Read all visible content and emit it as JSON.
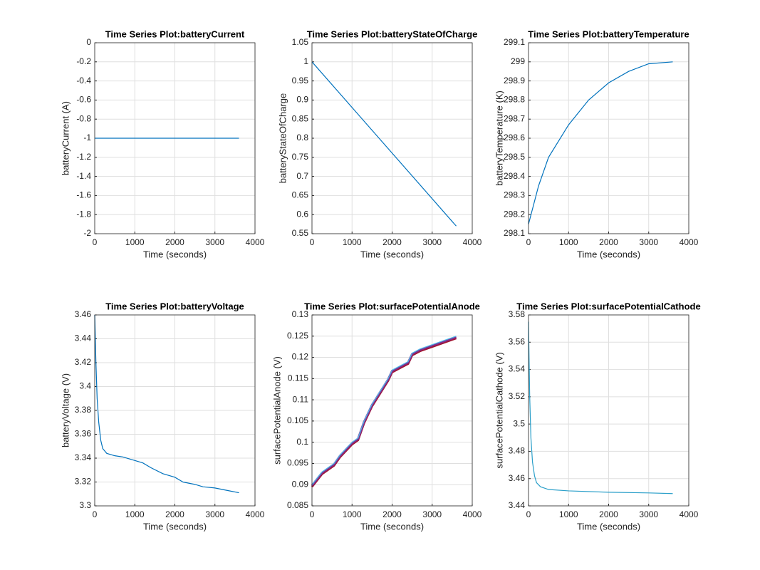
{
  "chart_data": [
    {
      "type": "line",
      "title": "Time Series Plot:batteryCurrent",
      "xlabel": "Time (seconds)",
      "ylabel": "batteryCurrent (A)",
      "x": [
        0,
        3600
      ],
      "series": [
        {
          "color": "#0072bd",
          "values": [
            -1,
            -1
          ]
        }
      ],
      "xlim": [
        0,
        4000
      ],
      "xticks": [
        0,
        1000,
        2000,
        3000,
        4000
      ],
      "ylim": [
        -2,
        0
      ],
      "yticks": [
        -2,
        -1.8,
        -1.6,
        -1.4,
        -1.2,
        -1,
        -0.8,
        -0.6,
        -0.4,
        -0.2,
        0
      ],
      "grid": true
    },
    {
      "type": "line",
      "title": "Time Series Plot:batteryStateOfCharge",
      "xlabel": "Time (seconds)",
      "ylabel": "batteryStateOfCharge",
      "x": [
        0,
        3600
      ],
      "series": [
        {
          "color": "#0072bd",
          "values": [
            1,
            0.57
          ]
        }
      ],
      "xlim": [
        0,
        4000
      ],
      "xticks": [
        0,
        1000,
        2000,
        3000,
        4000
      ],
      "ylim": [
        0.55,
        1.05
      ],
      "yticks": [
        0.55,
        0.6,
        0.65,
        0.7,
        0.75,
        0.8,
        0.85,
        0.9,
        0.95,
        1,
        1.05
      ],
      "grid": true
    },
    {
      "type": "line",
      "title": "Time Series Plot:batteryTemperature",
      "xlabel": "Time (seconds)",
      "ylabel": "batteryTemperature (K)",
      "x": [
        0,
        250,
        500,
        1000,
        1500,
        2000,
        2500,
        3000,
        3600
      ],
      "series": [
        {
          "color": "#0072bd",
          "values": [
            298.15,
            298.35,
            298.5,
            298.67,
            298.8,
            298.89,
            298.95,
            298.99,
            299.0
          ]
        }
      ],
      "xlim": [
        0,
        4000
      ],
      "xticks": [
        0,
        1000,
        2000,
        3000,
        4000
      ],
      "ylim": [
        298.1,
        299.1
      ],
      "yticks": [
        298.1,
        298.2,
        298.3,
        298.4,
        298.5,
        298.6,
        298.7,
        298.8,
        298.9,
        299,
        299.1
      ],
      "grid": true
    },
    {
      "type": "line",
      "title": "Time Series Plot:batteryVoltage",
      "xlabel": "Time (seconds)",
      "ylabel": "batteryVoltage (V)",
      "x": [
        0,
        30,
        60,
        100,
        150,
        200,
        300,
        500,
        700,
        1000,
        1200,
        1400,
        1700,
        2000,
        2200,
        2500,
        2700,
        3000,
        3300,
        3600
      ],
      "series": [
        {
          "color": "#0072bd",
          "values": [
            3.46,
            3.42,
            3.39,
            3.37,
            3.355,
            3.348,
            3.344,
            3.342,
            3.341,
            3.338,
            3.336,
            3.332,
            3.327,
            3.324,
            3.32,
            3.318,
            3.316,
            3.315,
            3.313,
            3.311
          ]
        }
      ],
      "xlim": [
        0,
        4000
      ],
      "xticks": [
        0,
        1000,
        2000,
        3000,
        4000
      ],
      "ylim": [
        3.3,
        3.46
      ],
      "yticks": [
        3.3,
        3.32,
        3.34,
        3.36,
        3.38,
        3.4,
        3.42,
        3.44,
        3.46
      ],
      "grid": true
    },
    {
      "type": "line",
      "title": "Time Series Plot:surfacePotentialAnode",
      "xlabel": "Time (seconds)",
      "ylabel": "surfacePotentialAnode (V)",
      "x": [
        0,
        250,
        550,
        700,
        900,
        1000,
        1150,
        1300,
        1500,
        1700,
        1900,
        2000,
        2200,
        2400,
        2500,
        2700,
        3000,
        3300,
        3600
      ],
      "series": [
        {
          "color": "#a2142f",
          "values": [
            0.0895,
            0.0925,
            0.0945,
            0.0965,
            0.0985,
            0.0995,
            0.1005,
            0.1045,
            0.1085,
            0.1115,
            0.1145,
            0.1165,
            0.1175,
            0.1185,
            0.1205,
            0.1215,
            0.1225,
            0.1235,
            0.1245
          ]
        },
        {
          "color": "#7e2f8e",
          "values": [
            0.0898,
            0.0928,
            0.0948,
            0.0968,
            0.0988,
            0.0998,
            0.1008,
            0.1048,
            0.1088,
            0.1118,
            0.1148,
            0.1168,
            0.1178,
            0.1188,
            0.1208,
            0.1218,
            0.1228,
            0.1238,
            0.1248
          ]
        },
        {
          "color": "#4dbeee",
          "values": [
            0.09,
            0.093,
            0.095,
            0.097,
            0.099,
            0.1,
            0.101,
            0.105,
            0.109,
            0.112,
            0.115,
            0.117,
            0.118,
            0.119,
            0.121,
            0.122,
            0.123,
            0.124,
            0.125
          ]
        }
      ],
      "xlim": [
        0,
        4000
      ],
      "xticks": [
        0,
        1000,
        2000,
        3000,
        4000
      ],
      "ylim": [
        0.085,
        0.13
      ],
      "yticks": [
        0.085,
        0.09,
        0.095,
        0.1,
        0.105,
        0.11,
        0.115,
        0.12,
        0.125,
        0.13
      ],
      "grid": true
    },
    {
      "type": "line",
      "title": "Time Series Plot:surfacePotentialCathode",
      "xlabel": "Time (seconds)",
      "ylabel": "surfacePotentialCathode (V)",
      "x": [
        0,
        30,
        60,
        100,
        150,
        200,
        300,
        500,
        1000,
        2000,
        3000,
        3600
      ],
      "series": [
        {
          "color": "#2a9fc9",
          "values": [
            3.575,
            3.52,
            3.49,
            3.472,
            3.462,
            3.457,
            3.454,
            3.452,
            3.451,
            3.45,
            3.4495,
            3.449
          ]
        }
      ],
      "xlim": [
        0,
        4000
      ],
      "xticks": [
        0,
        1000,
        2000,
        3000,
        4000
      ],
      "ylim": [
        3.44,
        3.58
      ],
      "yticks": [
        3.44,
        3.46,
        3.48,
        3.5,
        3.52,
        3.54,
        3.56,
        3.58
      ],
      "grid": true
    }
  ]
}
